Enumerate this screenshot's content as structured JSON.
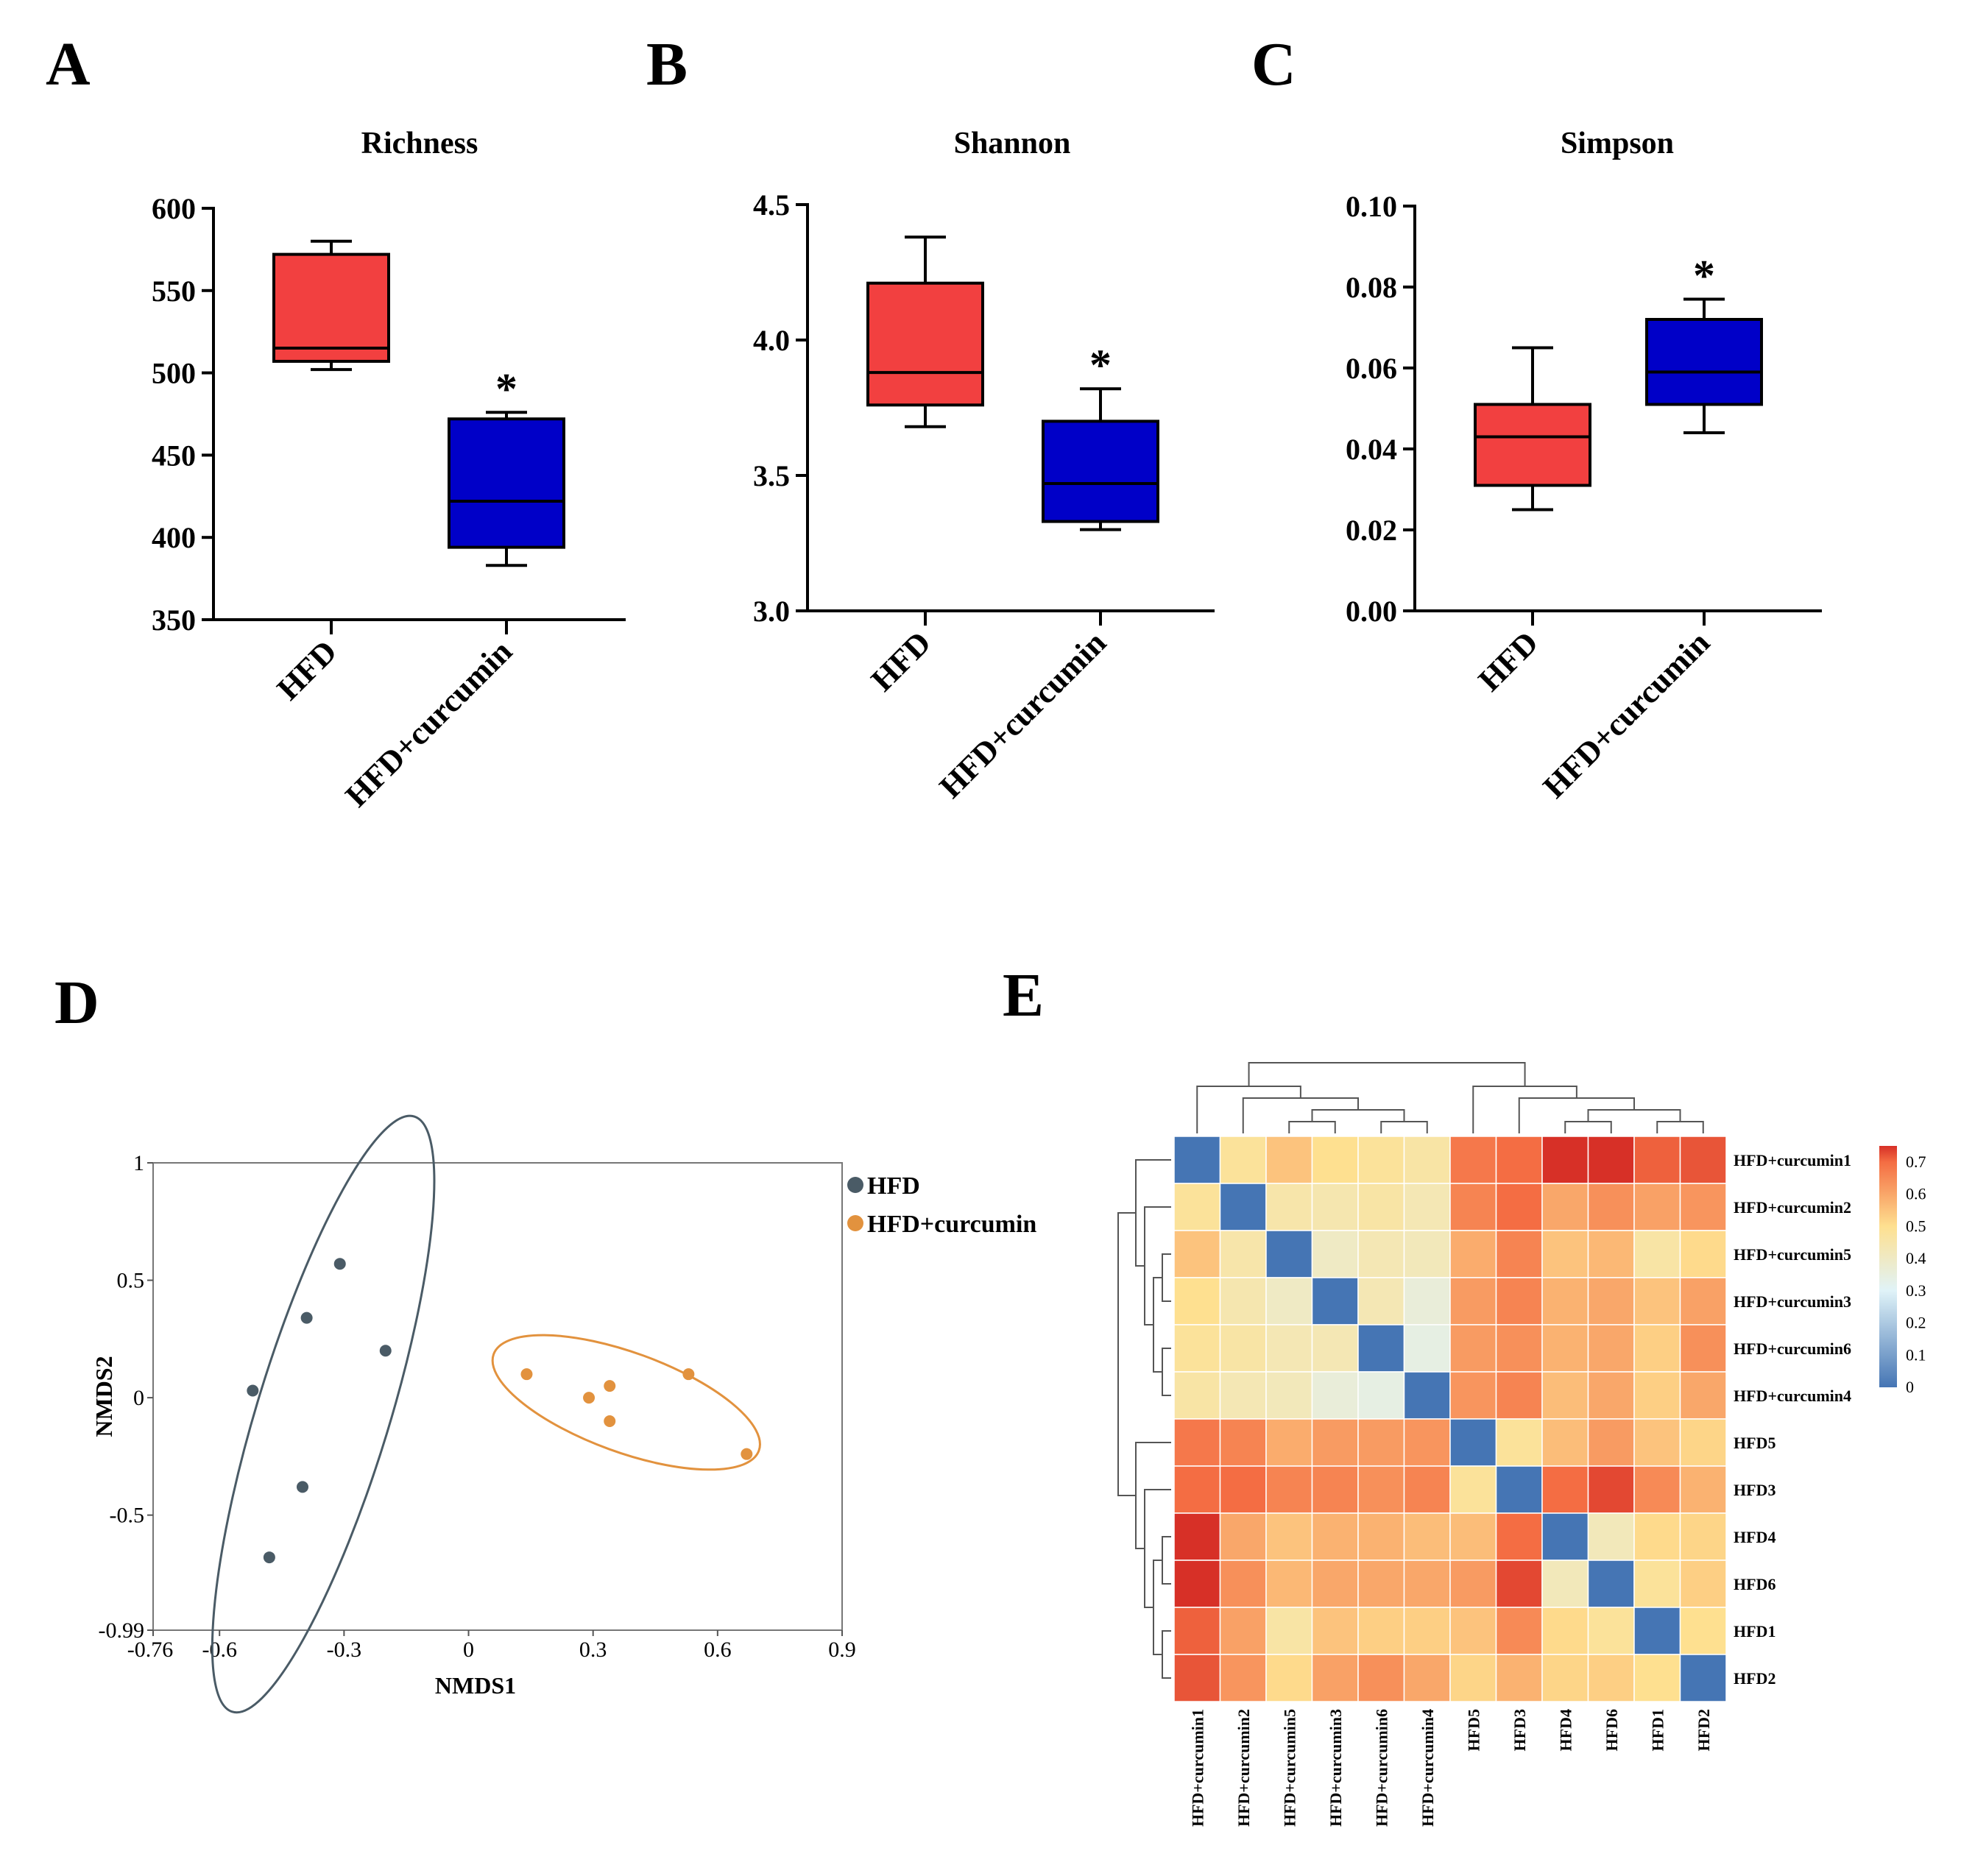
{
  "panel_letters": [
    "A",
    "B",
    "C",
    "D",
    "E"
  ],
  "colors": {
    "hfd_box": "#f24040",
    "curc_box": "#0000c8",
    "hfd_point": "#4a5b66",
    "curc_point": "#e2923e"
  },
  "chart_data": [
    {
      "type": "box",
      "panel": "A",
      "title": "Richness",
      "categories": [
        "HFD",
        "HFD+curcumin"
      ],
      "ylim": [
        350,
        600
      ],
      "yticks": [
        350,
        400,
        450,
        500,
        550,
        600
      ],
      "ytick_labels": [
        "350",
        "400",
        "450",
        "500",
        "550",
        "600"
      ],
      "boxes": [
        {
          "whisker_low": 502,
          "q1": 507,
          "median": 515,
          "q3": 572,
          "whisker_high": 580
        },
        {
          "whisker_low": 383,
          "q1": 394,
          "median": 422,
          "q3": 472,
          "whisker_high": 476
        }
      ],
      "annotation": "*"
    },
    {
      "type": "box",
      "panel": "B",
      "title": "Shannon",
      "categories": [
        "HFD",
        "HFD+curcumin"
      ],
      "ylim": [
        3.0,
        4.5
      ],
      "yticks": [
        3.0,
        3.5,
        4.0,
        4.5
      ],
      "ytick_labels": [
        "3.0",
        "3.5",
        "4.0",
        "4.5"
      ],
      "boxes": [
        {
          "whisker_low": 3.68,
          "q1": 3.76,
          "median": 3.88,
          "q3": 4.21,
          "whisker_high": 4.38
        },
        {
          "whisker_low": 3.3,
          "q1": 3.33,
          "median": 3.47,
          "q3": 3.7,
          "whisker_high": 3.82
        }
      ],
      "annotation": "*"
    },
    {
      "type": "box",
      "panel": "C",
      "title": "Simpson",
      "categories": [
        "HFD",
        "HFD+curcumin"
      ],
      "ylim": [
        0.0,
        0.1
      ],
      "yticks": [
        0.0,
        0.02,
        0.04,
        0.06,
        0.08,
        0.1
      ],
      "ytick_labels": [
        "0.00",
        "0.02",
        "0.04",
        "0.06",
        "0.08",
        "0.10"
      ],
      "boxes": [
        {
          "whisker_low": 0.025,
          "q1": 0.031,
          "median": 0.043,
          "q3": 0.051,
          "whisker_high": 0.065
        },
        {
          "whisker_low": 0.044,
          "q1": 0.051,
          "median": 0.059,
          "q3": 0.072,
          "whisker_high": 0.077
        }
      ],
      "annotation": "*"
    },
    {
      "type": "scatter",
      "panel": "D",
      "xlabel": "NMDS1",
      "ylabel": "NMDS2",
      "xlim": [
        -0.76,
        0.9
      ],
      "ylim": [
        -0.99,
        1.0
      ],
      "xticks": [
        -0.76,
        -0.6,
        -0.3,
        0,
        0.3,
        0.6,
        0.9
      ],
      "xtick_labels": [
        "-0.76",
        "-0.6",
        "-0.3",
        "0",
        "0.3",
        "0.6",
        "0.9"
      ],
      "yticks": [
        -0.99,
        -0.5,
        0,
        0.5,
        1.0
      ],
      "ytick_labels": [
        "-0.99",
        "-0.5",
        "0",
        "0.5",
        "1"
      ],
      "series": [
        {
          "name": "HFD",
          "points": [
            [
              -0.31,
              0.57
            ],
            [
              -0.39,
              0.34
            ],
            [
              -0.2,
              0.2
            ],
            [
              -0.52,
              0.03
            ],
            [
              -0.4,
              -0.38
            ],
            [
              -0.48,
              -0.68
            ]
          ],
          "ellipse": {
            "cx": -0.35,
            "cy": -0.07,
            "rx": 0.75,
            "ry": 0.16,
            "angle_deg": 73
          }
        },
        {
          "name": "HFD+curcumin",
          "points": [
            [
              0.14,
              0.1
            ],
            [
              0.29,
              0.0
            ],
            [
              0.34,
              0.05
            ],
            [
              0.34,
              -0.1
            ],
            [
              0.53,
              0.1
            ],
            [
              0.67,
              -0.24
            ]
          ],
          "ellipse": {
            "cx": 0.38,
            "cy": -0.02,
            "rx": 0.34,
            "ry": 0.12,
            "angle_deg": -20
          }
        }
      ]
    },
    {
      "type": "heatmap",
      "panel": "E",
      "row_labels": [
        "HFD+curcumin1",
        "HFD+curcumin2",
        "HFD+curcumin5",
        "HFD+curcumin3",
        "HFD+curcumin6",
        "HFD+curcumin4",
        "HFD5",
        "HFD3",
        "HFD4",
        "HFD6",
        "HFD1",
        "HFD2"
      ],
      "col_labels": [
        "HFD+curcumin1",
        "HFD+curcumin2",
        "HFD+curcumin5",
        "HFD+curcumin3",
        "HFD+curcumin6",
        "HFD+curcumin4",
        "HFD5",
        "HFD3",
        "HFD4",
        "HFD6",
        "HFD1",
        "HFD2"
      ],
      "colorbar": {
        "min": 0,
        "max": 0.75,
        "ticks": [
          0,
          0.1,
          0.2,
          0.3,
          0.4,
          0.5,
          0.6,
          0.7
        ],
        "tick_labels": [
          "0",
          "0.1",
          "0.2",
          "0.3",
          "0.4",
          "0.5",
          "0.6",
          "0.7"
        ]
      },
      "values": [
        [
          0.0,
          0.48,
          0.55,
          0.5,
          0.48,
          0.46,
          0.68,
          0.7,
          0.75,
          0.75,
          0.71,
          0.72
        ],
        [
          0.48,
          0.0,
          0.45,
          0.44,
          0.46,
          0.43,
          0.66,
          0.7,
          0.6,
          0.64,
          0.61,
          0.63
        ],
        [
          0.55,
          0.45,
          0.0,
          0.4,
          0.43,
          0.42,
          0.59,
          0.66,
          0.55,
          0.57,
          0.46,
          0.51
        ],
        [
          0.5,
          0.44,
          0.4,
          0.0,
          0.43,
          0.36,
          0.62,
          0.66,
          0.58,
          0.6,
          0.55,
          0.61
        ],
        [
          0.48,
          0.46,
          0.43,
          0.43,
          0.0,
          0.34,
          0.62,
          0.64,
          0.58,
          0.6,
          0.53,
          0.64
        ],
        [
          0.46,
          0.43,
          0.42,
          0.36,
          0.34,
          0.0,
          0.63,
          0.66,
          0.56,
          0.6,
          0.53,
          0.6
        ],
        [
          0.68,
          0.66,
          0.59,
          0.62,
          0.62,
          0.63,
          0.0,
          0.48,
          0.56,
          0.62,
          0.55,
          0.52
        ],
        [
          0.7,
          0.7,
          0.66,
          0.66,
          0.64,
          0.66,
          0.48,
          0.0,
          0.7,
          0.73,
          0.65,
          0.58
        ],
        [
          0.75,
          0.6,
          0.55,
          0.58,
          0.58,
          0.56,
          0.56,
          0.7,
          0.0,
          0.42,
          0.51,
          0.52
        ],
        [
          0.75,
          0.64,
          0.57,
          0.6,
          0.6,
          0.6,
          0.62,
          0.73,
          0.42,
          0.0,
          0.48,
          0.53
        ],
        [
          0.71,
          0.61,
          0.46,
          0.55,
          0.53,
          0.53,
          0.55,
          0.65,
          0.51,
          0.48,
          0.0,
          0.5
        ],
        [
          0.72,
          0.63,
          0.51,
          0.61,
          0.64,
          0.6,
          0.52,
          0.58,
          0.52,
          0.53,
          0.5,
          0.0
        ]
      ]
    }
  ]
}
